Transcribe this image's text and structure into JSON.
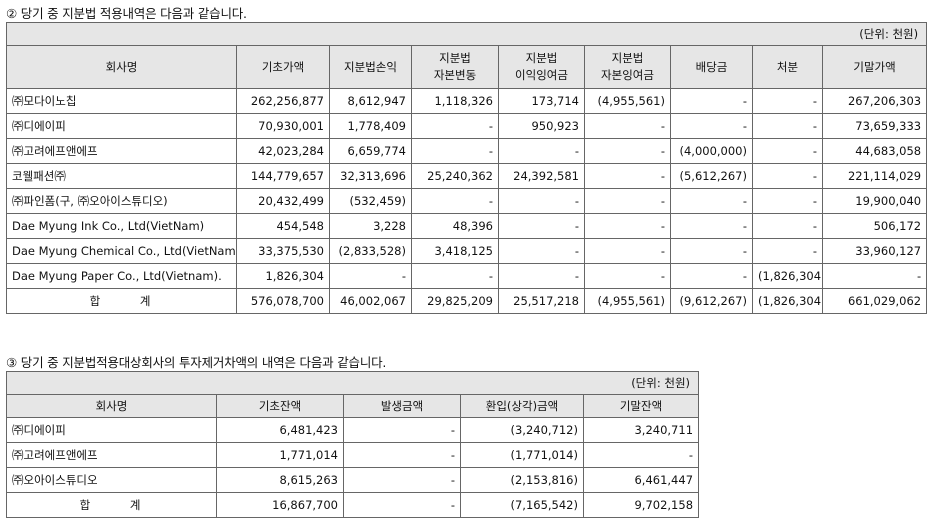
{
  "section2": {
    "heading": "② 당기 중 지분법 적용내역은 다음과 같습니다.",
    "unit": "(단위: 천원)",
    "columns": [
      {
        "l1": "회사명",
        "l2": ""
      },
      {
        "l1": "기초가액",
        "l2": ""
      },
      {
        "l1": "지분법손익",
        "l2": ""
      },
      {
        "l1": "지분법",
        "l2": "자본변동"
      },
      {
        "l1": "지분법",
        "l2": "이익잉여금"
      },
      {
        "l1": "지분법",
        "l2": "자본잉여금"
      },
      {
        "l1": "배당금",
        "l2": ""
      },
      {
        "l1": "처분",
        "l2": ""
      },
      {
        "l1": "기말가액",
        "l2": ""
      }
    ],
    "rows": [
      [
        "㈜모다이노칩",
        "262,256,877",
        "8,612,947",
        "1,118,326",
        "173,714",
        "(4,955,561)",
        "-",
        "-",
        "267,206,303"
      ],
      [
        "㈜디에이피",
        "70,930,001",
        "1,778,409",
        "-",
        "950,923",
        "-",
        "-",
        "-",
        "73,659,333"
      ],
      [
        "㈜고려에프앤에프",
        "42,023,284",
        "6,659,774",
        "-",
        "-",
        "-",
        "(4,000,000)",
        "-",
        "44,683,058"
      ],
      [
        "코웰패션㈜",
        "144,779,657",
        "32,313,696",
        "25,240,362",
        "24,392,581",
        "-",
        "(5,612,267)",
        "-",
        "221,114,029"
      ],
      [
        "㈜파인폼(구, ㈜오아이스튜디오)",
        "20,432,499",
        "(532,459)",
        "-",
        "-",
        "-",
        "-",
        "-",
        "19,900,040"
      ],
      [
        "Dae Myung Ink Co., Ltd(VietNam)",
        "454,548",
        "3,228",
        "48,396",
        "-",
        "-",
        "-",
        "-",
        "506,172"
      ],
      [
        "Dae Myung Chemical Co., Ltd(VietNam)",
        "33,375,530",
        "(2,833,528)",
        "3,418,125",
        "-",
        "-",
        "-",
        "-",
        "33,960,127"
      ],
      [
        "Dae Myung Paper Co., Ltd(Vietnam).",
        "1,826,304",
        "-",
        "-",
        "-",
        "-",
        "-",
        "(1,826,304)",
        "-"
      ]
    ],
    "total": [
      "합 계",
      "576,078,700",
      "46,002,067",
      "29,825,209",
      "25,517,218",
      "(4,955,561)",
      "(9,612,267)",
      "(1,826,304)",
      "661,029,062"
    ]
  },
  "section3": {
    "heading": "③ 당기 중 지분법적용대상회사의 투자제거차액의 내역은 다음과 같습니다.",
    "unit": "(단위: 천원)",
    "columns": [
      "회사명",
      "기초잔액",
      "발생금액",
      "환입(상각)금액",
      "기말잔액"
    ],
    "rows": [
      [
        "㈜디에이피",
        "6,481,423",
        "-",
        "(3,240,712)",
        "3,240,711"
      ],
      [
        "㈜고려에프앤에프",
        "1,771,014",
        "-",
        "(1,771,014)",
        "-"
      ],
      [
        "㈜오아이스튜디오",
        "8,615,263",
        "-",
        "(2,153,816)",
        "6,461,447"
      ]
    ],
    "total": [
      "합 계",
      "16,867,700",
      "-",
      "(7,165,542)",
      "9,702,158"
    ]
  }
}
